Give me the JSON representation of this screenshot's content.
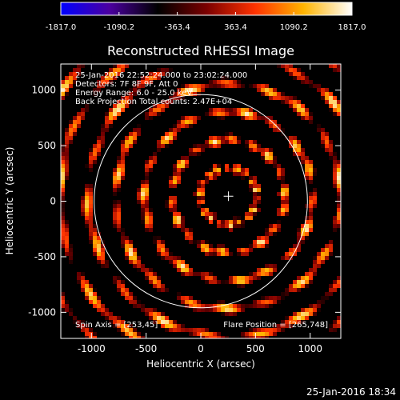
{
  "chart_data": {
    "type": "heatmap",
    "title": "Reconstructed RHESSI Image",
    "xlabel": "Heliocentric X (arcsec)",
    "ylabel": "Heliocentric Y (arcsec)",
    "xlim": [
      -1280,
      1280
    ],
    "ylim": [
      -1235,
      1235
    ],
    "x_ticks": [
      -1000,
      -500,
      0,
      500,
      1000
    ],
    "x_tick_labels": [
      "-1000",
      "-500",
      "0",
      "500",
      "1000"
    ],
    "y_ticks": [
      -1000,
      -500,
      0,
      500,
      1000
    ],
    "y_tick_labels": [
      "-1000",
      "-500",
      "0",
      "500",
      "1000"
    ],
    "colorbar": {
      "range": [
        -1817.0,
        1817.0
      ],
      "tick_values": [
        -1817.0,
        -1090.2,
        -363.4,
        363.4,
        1090.2,
        1817.0
      ],
      "tick_labels": [
        "-1817.0",
        "-1090.2",
        "-363.4",
        "363.4",
        "1090.2",
        "1817.0"
      ],
      "colormap": [
        "#0000ff",
        "#4b00a0",
        "#000000",
        "#7a0000",
        "#ff3200",
        "#ffb400",
        "#ffffff"
      ]
    },
    "annotations": [
      "25-Jan-2016 22:52:24.000 to 23:02:24.000",
      "Detectors: 7F 8F 9F, Att 0",
      "Energy Range: 6.0 - 25.0 keV",
      "Back Projection   Total counts: 2.47E+04"
    ],
    "spin_axis_label": "Spin Axis = [253,45]",
    "flare_position_label": "Flare Position = [265,748]",
    "spin_axis": [
      253,
      45
    ],
    "flare_position": [
      265,
      748
    ],
    "solar_limb_radius_arcsec": 975,
    "plot_timestamp": "25-Jan-2016 18:34"
  }
}
